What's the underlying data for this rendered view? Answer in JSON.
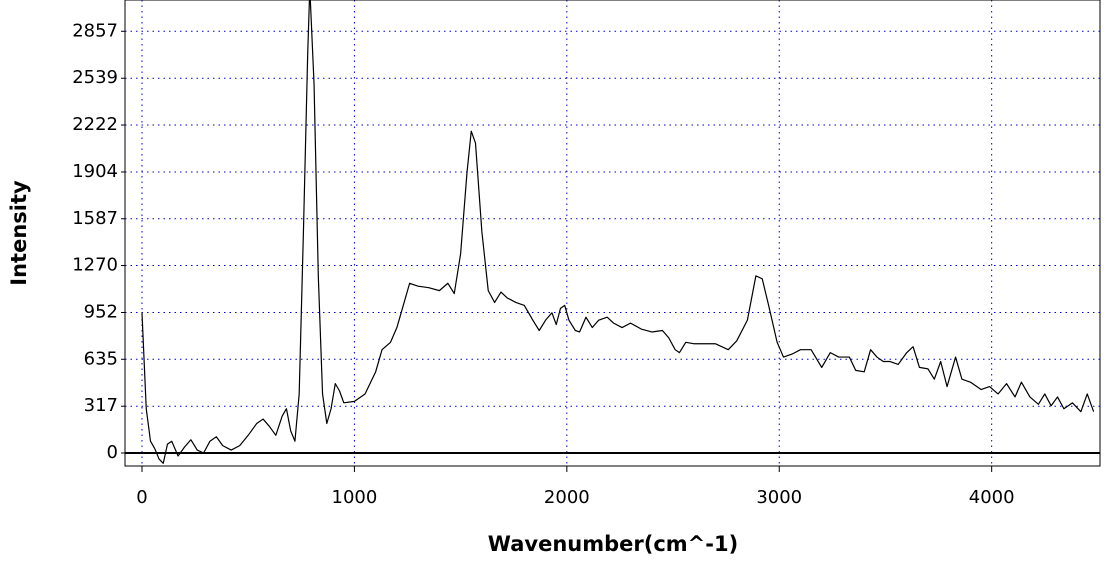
{
  "chart_data": {
    "type": "line",
    "x_label": "Wavenumber(cm^-1)",
    "y_label": "Intensity",
    "xlim": [
      -80,
      4510
    ],
    "ylim": [
      -88,
      3069
    ],
    "xticks": [
      0,
      1000,
      2000,
      3000,
      4000
    ],
    "yticks": [
      0,
      317,
      635,
      952,
      1270,
      1587,
      1904,
      2222,
      2539,
      2857
    ],
    "grid": true,
    "grid_color": "#0000cc",
    "zero_line": true,
    "series": [
      {
        "color": "#000000",
        "x": [
          0,
          20,
          40,
          60,
          80,
          100,
          120,
          140,
          170,
          200,
          230,
          260,
          290,
          320,
          350,
          380,
          420,
          460,
          500,
          540,
          570,
          600,
          630,
          660,
          680,
          700,
          720,
          740,
          760,
          780,
          790,
          810,
          830,
          850,
          870,
          890,
          910,
          930,
          950,
          1000,
          1050,
          1100,
          1130,
          1170,
          1200,
          1230,
          1260,
          1300,
          1350,
          1400,
          1440,
          1470,
          1500,
          1530,
          1550,
          1570,
          1600,
          1630,
          1660,
          1690,
          1720,
          1760,
          1800,
          1840,
          1870,
          1900,
          1930,
          1950,
          1970,
          1990,
          2010,
          2040,
          2060,
          2090,
          2120,
          2150,
          2190,
          2220,
          2260,
          2300,
          2350,
          2400,
          2450,
          2480,
          2510,
          2530,
          2560,
          2600,
          2700,
          2760,
          2800,
          2850,
          2890,
          2920,
          2950,
          2990,
          3020,
          3060,
          3100,
          3150,
          3200,
          3240,
          3280,
          3330,
          3360,
          3400,
          3430,
          3460,
          3490,
          3520,
          3560,
          3600,
          3630,
          3660,
          3700,
          3730,
          3760,
          3790,
          3830,
          3860,
          3900,
          3950,
          3990,
          4030,
          4070,
          4110,
          4140,
          4180,
          4220,
          4250,
          4280,
          4310,
          4340,
          4380,
          4420,
          4450,
          4480
        ],
        "values": [
          950,
          300,
          80,
          30,
          -40,
          -70,
          60,
          80,
          -20,
          40,
          90,
          20,
          0,
          80,
          110,
          50,
          20,
          50,
          120,
          200,
          230,
          180,
          120,
          250,
          300,
          150,
          80,
          400,
          1500,
          2700,
          3150,
          2500,
          1200,
          400,
          200,
          300,
          470,
          420,
          340,
          350,
          400,
          550,
          700,
          750,
          850,
          1000,
          1150,
          1130,
          1120,
          1100,
          1150,
          1080,
          1350,
          1900,
          2180,
          2100,
          1500,
          1100,
          1020,
          1090,
          1050,
          1020,
          1000,
          900,
          830,
          900,
          950,
          870,
          980,
          1000,
          900,
          830,
          820,
          920,
          850,
          900,
          920,
          880,
          850,
          880,
          840,
          820,
          830,
          780,
          700,
          680,
          750,
          740,
          740,
          700,
          760,
          900,
          1200,
          1180,
          1000,
          750,
          650,
          670,
          700,
          700,
          580,
          680,
          650,
          650,
          560,
          550,
          700,
          650,
          620,
          620,
          600,
          680,
          720,
          580,
          570,
          500,
          620,
          450,
          650,
          500,
          480,
          430,
          450,
          400,
          470,
          380,
          480,
          380,
          330,
          400,
          320,
          380,
          300,
          340,
          280,
          400,
          280
        ]
      }
    ]
  }
}
